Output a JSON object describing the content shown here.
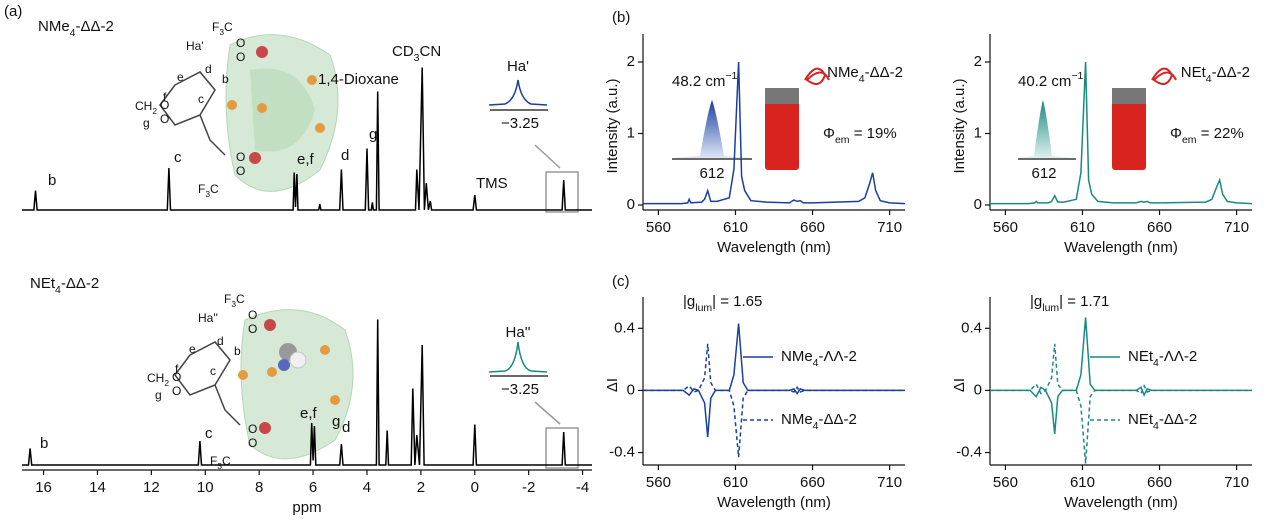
{
  "panel_labels": [
    "(a)",
    "(b)",
    "(c)"
  ],
  "chart_data": [
    {
      "type": "line",
      "title": [
        "NMe",
        "4",
        "-ΔΔ-2"
      ],
      "color": "#000000",
      "xlim": [
        16.8,
        -4.35
      ],
      "ylim": [
        0,
        1
      ],
      "x": [
        16.8,
        16.36,
        16.3,
        16.24,
        11.41,
        11.35,
        11.29,
        6.74,
        6.7,
        6.65,
        6.6,
        6.56,
        5.79,
        5.75,
        5.71,
        5.01,
        4.95,
        4.89,
        4.06,
        4.0,
        3.94,
        3.84,
        3.8,
        3.76,
        3.65,
        3.6,
        3.55,
        2.2,
        2.15,
        2.07,
        1.95,
        1.87,
        1.8,
        1.72,
        1.65,
        1.6,
        0.06,
        0.0,
        -0.06,
        -3.24,
        -3.3,
        -3.36,
        -4.35
      ],
      "values": [
        0,
        0,
        0.13,
        0,
        0,
        0.28,
        0,
        0,
        0.25,
        0.02,
        0.24,
        0,
        0,
        0.04,
        0,
        0,
        0.27,
        0,
        0,
        0.41,
        0,
        0,
        0.05,
        0,
        0,
        0.79,
        0,
        0,
        0.27,
        0,
        0.95,
        0,
        0.18,
        0,
        0.06,
        0,
        0,
        0.1,
        0,
        0,
        0.2,
        0,
        0
      ],
      "annotations": [
        [
          "b"
        ],
        [
          "c"
        ],
        [
          "e,f"
        ],
        [
          "d"
        ],
        [
          "g"
        ],
        [
          "1,4-Dioxane"
        ],
        [
          "CD",
          "3",
          "CN"
        ],
        [
          "TMS"
        ]
      ],
      "inset": {
        "title": "Ha'",
        "tick": "−3.25"
      },
      "structure_labels": [
        [
          "Ha'"
        ],
        [
          "F",
          "3",
          "C"
        ],
        [
          "O"
        ],
        [
          "O"
        ],
        [
          "d"
        ],
        [
          "e"
        ],
        [
          "b"
        ],
        [
          "c"
        ],
        [
          "f"
        ],
        [
          "CH",
          "2"
        ],
        [
          "O"
        ],
        [
          "O"
        ],
        [
          "g"
        ],
        [
          "F",
          "3",
          "C"
        ],
        [
          "O"
        ],
        [
          "O"
        ]
      ]
    },
    {
      "type": "line",
      "title": [
        "NEt",
        "4",
        "-ΔΔ-2"
      ],
      "color": "#000000",
      "xlim": [
        16.8,
        -4.35
      ],
      "ylim": [
        0,
        1
      ],
      "xlabel": "ppm",
      "xticks": [
        16,
        14,
        12,
        10,
        8,
        6,
        4,
        2,
        0,
        -2,
        -4
      ],
      "x": [
        16.8,
        16.56,
        16.5,
        16.44,
        10.26,
        10.2,
        10.14,
        6.1,
        6.05,
        6.0,
        5.95,
        5.9,
        5.01,
        4.95,
        4.89,
        3.65,
        3.6,
        3.55,
        3.3,
        3.25,
        3.2,
        2.36,
        2.3,
        2.22,
        2.15,
        2.05,
        1.95,
        1.88,
        0.06,
        0.0,
        -0.06,
        -3.24,
        -3.3,
        -3.36,
        -4.35
      ],
      "values": [
        0,
        0,
        0.11,
        0,
        0,
        0.16,
        0,
        0,
        0.28,
        0.03,
        0.26,
        0,
        0,
        0.14,
        0,
        0,
        0.97,
        0,
        0,
        0.23,
        0,
        0,
        0.51,
        0,
        0.2,
        0,
        0.8,
        0,
        0,
        0.27,
        0,
        0,
        0.22,
        0,
        0
      ],
      "annotations": [
        [
          "b"
        ],
        [
          "c"
        ],
        [
          "e,f"
        ],
        [
          "d"
        ],
        [
          "g"
        ]
      ],
      "inset": {
        "title": "Ha''",
        "tick": "−3.25"
      },
      "structure_labels": [
        [
          "Ha''"
        ],
        [
          "F",
          "3",
          "C"
        ],
        [
          "O"
        ],
        [
          "O"
        ],
        [
          "d"
        ],
        [
          "e"
        ],
        [
          "b"
        ],
        [
          "c"
        ],
        [
          "f"
        ],
        [
          "CH",
          "2"
        ],
        [
          "O"
        ],
        [
          "O"
        ],
        [
          "g"
        ],
        [
          "F",
          "3",
          "C"
        ],
        [
          "O"
        ],
        [
          "O"
        ]
      ]
    },
    {
      "type": "line",
      "title": [
        "NMe",
        "4",
        "-ΔΔ-2"
      ],
      "color": "#1a3fa0",
      "xlabel": "Wavelength (nm)",
      "ylabel": "Intensity (a.u.)",
      "xlim": [
        550,
        720
      ],
      "ylim": [
        -0.07,
        2.28
      ],
      "xticks": [
        560,
        610,
        660,
        710
      ],
      "yticks": [
        0,
        1,
        2
      ],
      "x": [
        550,
        575,
        579,
        580,
        581,
        588,
        590,
        592,
        594,
        598,
        606,
        609,
        612,
        614,
        616,
        620,
        630,
        645,
        648,
        650,
        652,
        654,
        660,
        690,
        694,
        697,
        699,
        701,
        704,
        710,
        720
      ],
      "values": [
        0.02,
        0.02,
        0.03,
        0.08,
        0.03,
        0.04,
        0.08,
        0.2,
        0.05,
        0.05,
        0.1,
        0.5,
        2.0,
        0.4,
        0.2,
        0.06,
        0.04,
        0.03,
        0.07,
        0.05,
        0.06,
        0.03,
        0.03,
        0.05,
        0.1,
        0.3,
        0.45,
        0.2,
        0.06,
        0.03,
        0.02
      ],
      "annotation": [
        "Φ",
        "em",
        " = 19%"
      ],
      "inset": {
        "width": [
          "48.2 cm",
          "−1"
        ],
        "tick": "612"
      }
    },
    {
      "type": "line",
      "title": [
        "NEt",
        "4",
        "-ΔΔ-2"
      ],
      "color": "#1a8a80",
      "xlabel": "Wavelength (nm)",
      "ylabel": "Intensity (a.u.)",
      "xlim": [
        550,
        720
      ],
      "ylim": [
        -0.07,
        2.28
      ],
      "xticks": [
        560,
        610,
        660,
        710
      ],
      "yticks": [
        0,
        1,
        2
      ],
      "x": [
        550,
        575,
        579,
        580,
        581,
        588,
        590,
        592,
        594,
        598,
        606,
        609,
        612,
        614,
        616,
        620,
        630,
        645,
        648,
        650,
        652,
        654,
        660,
        690,
        694,
        697,
        699,
        701,
        704,
        710,
        720
      ],
      "values": [
        0.02,
        0.02,
        0.03,
        0.05,
        0.03,
        0.03,
        0.05,
        0.13,
        0.04,
        0.04,
        0.08,
        0.45,
        2.0,
        0.35,
        0.15,
        0.05,
        0.03,
        0.03,
        0.05,
        0.04,
        0.05,
        0.03,
        0.03,
        0.04,
        0.08,
        0.25,
        0.35,
        0.15,
        0.05,
        0.03,
        0.02
      ],
      "annotation": [
        "Φ",
        "em",
        " = 22%"
      ],
      "inset": {
        "width": [
          "40.2 cm",
          "−1"
        ],
        "tick": "612"
      }
    },
    {
      "type": "line",
      "xlabel": "Wavelength (nm)",
      "ylabel": "ΔI",
      "legend": "right",
      "xlim": [
        550,
        720
      ],
      "ylim": [
        -0.48,
        0.55
      ],
      "xticks": [
        560,
        610,
        660,
        710
      ],
      "yticks": [
        -0.4,
        0,
        0.4
      ],
      "annotation": [
        "|g",
        "lum",
        "| = 1.65"
      ],
      "x": [
        550,
        576,
        580,
        583,
        586,
        590,
        592,
        594,
        597,
        606,
        609,
        612,
        615,
        618,
        645,
        648,
        650,
        652,
        655,
        720
      ],
      "series": [
        {
          "name": [
            "NMe",
            "4",
            "-ΛΛ-2"
          ],
          "color": "#1a3fa0",
          "dash": false,
          "values": [
            0,
            0,
            -0.03,
            0.01,
            0,
            -0.08,
            -0.3,
            -0.05,
            0,
            0,
            0.1,
            0.43,
            0.05,
            0,
            0,
            0.01,
            -0.02,
            0.01,
            0,
            0
          ]
        },
        {
          "name": [
            "NMe",
            "4",
            "-ΔΔ-2"
          ],
          "color": "#1a3fa0",
          "dash": true,
          "values": [
            0,
            0,
            0.03,
            -0.01,
            0,
            0.08,
            0.3,
            0.05,
            0,
            0,
            -0.1,
            -0.43,
            -0.05,
            0,
            0,
            -0.01,
            0.02,
            -0.01,
            0,
            0
          ]
        }
      ]
    },
    {
      "type": "line",
      "xlabel": "Wavelength (nm)",
      "ylabel": "ΔI",
      "legend": "right",
      "xlim": [
        550,
        720
      ],
      "ylim": [
        -0.48,
        0.55
      ],
      "xticks": [
        560,
        610,
        660,
        710
      ],
      "yticks": [
        -0.4,
        0,
        0.4
      ],
      "annotation": [
        "|g",
        "lum",
        "| = 1.71"
      ],
      "x": [
        550,
        576,
        580,
        583,
        586,
        590,
        592,
        594,
        597,
        606,
        609,
        612,
        615,
        618,
        645,
        648,
        650,
        652,
        655,
        720
      ],
      "series": [
        {
          "name": [
            "NEt",
            "4",
            "-ΛΛ-2"
          ],
          "color": "#1a8a80",
          "dash": false,
          "values": [
            0,
            0,
            -0.04,
            0.02,
            0,
            -0.08,
            -0.28,
            -0.04,
            0,
            0,
            0.1,
            0.47,
            0.04,
            0,
            0,
            0.02,
            -0.03,
            0.01,
            0,
            0
          ]
        },
        {
          "name": [
            "NEt",
            "4",
            "-ΔΔ-2"
          ],
          "color": "#1a8a80",
          "dash": true,
          "values": [
            0,
            0,
            0.04,
            -0.02,
            0,
            0.08,
            0.3,
            0.04,
            0,
            0,
            -0.1,
            -0.47,
            -0.04,
            0,
            0,
            -0.02,
            0.03,
            -0.01,
            0,
            0
          ]
        }
      ]
    }
  ]
}
